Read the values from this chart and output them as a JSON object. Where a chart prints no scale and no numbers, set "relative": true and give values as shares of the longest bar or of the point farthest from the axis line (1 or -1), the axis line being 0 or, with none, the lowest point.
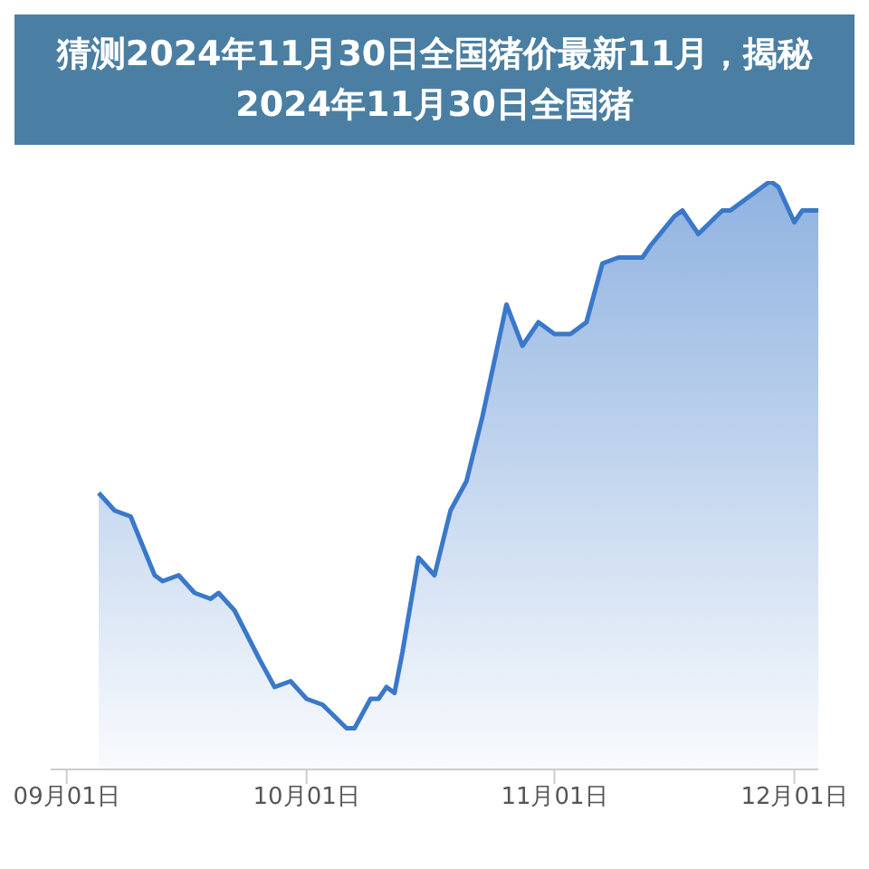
{
  "chart_data": {
    "type": "area",
    "title": "猜测2024年11月30日全国猪价最新11月，揭秘2024年11月30日全国猪",
    "relative": true,
    "x": [
      "--09-05",
      "--09-07",
      "--09-09",
      "--09-12",
      "--09-13",
      "--09-15",
      "--09-17",
      "--09-19",
      "--09-20",
      "--09-22",
      "--09-25",
      "--09-27",
      "--09-29",
      "--10-01",
      "--10-03",
      "--10-06",
      "--10-07",
      "--10-09",
      "--10-10",
      "--10-11",
      "--10-12",
      "--10-13",
      "--10-15",
      "--10-17",
      "--10-19",
      "--10-21",
      "--10-23",
      "--10-26",
      "--10-28",
      "--10-30",
      "--11-01",
      "--11-03",
      "--11-05",
      "--11-07",
      "--11-09",
      "--11-10",
      "--11-12",
      "--11-13",
      "--11-16",
      "--11-17",
      "--11-19",
      "--11-22",
      "--11-23",
      "--11-26",
      "--11-28",
      "--11-29",
      "--12-01",
      "--12-02",
      "--12-04"
    ],
    "series": [
      {
        "color": "#3a78c9",
        "values": [
          0.47,
          0.44,
          0.43,
          0.33,
          0.32,
          0.33,
          0.3,
          0.29,
          0.3,
          0.27,
          0.19,
          0.14,
          0.15,
          0.12,
          0.11,
          0.07,
          0.07,
          0.12,
          0.12,
          0.14,
          0.13,
          0.2,
          0.36,
          0.33,
          0.44,
          0.49,
          0.6,
          0.79,
          0.72,
          0.76,
          0.74,
          0.74,
          0.76,
          0.86,
          0.87,
          0.87,
          0.87,
          0.89,
          0.94,
          0.95,
          0.91,
          0.95,
          0.95,
          0.98,
          1.0,
          0.99,
          0.93,
          0.95,
          0.95
        ]
      }
    ],
    "xlim": [
      "--08-30",
      "--12-04"
    ],
    "xticks": [
      {
        "value": "--09-01",
        "label": "09月01日"
      },
      {
        "value": "--10-01",
        "label": "10月01日"
      },
      {
        "value": "--11-01",
        "label": "11月01日"
      },
      {
        "value": "--12-01",
        "label": "12月01日"
      }
    ]
  }
}
